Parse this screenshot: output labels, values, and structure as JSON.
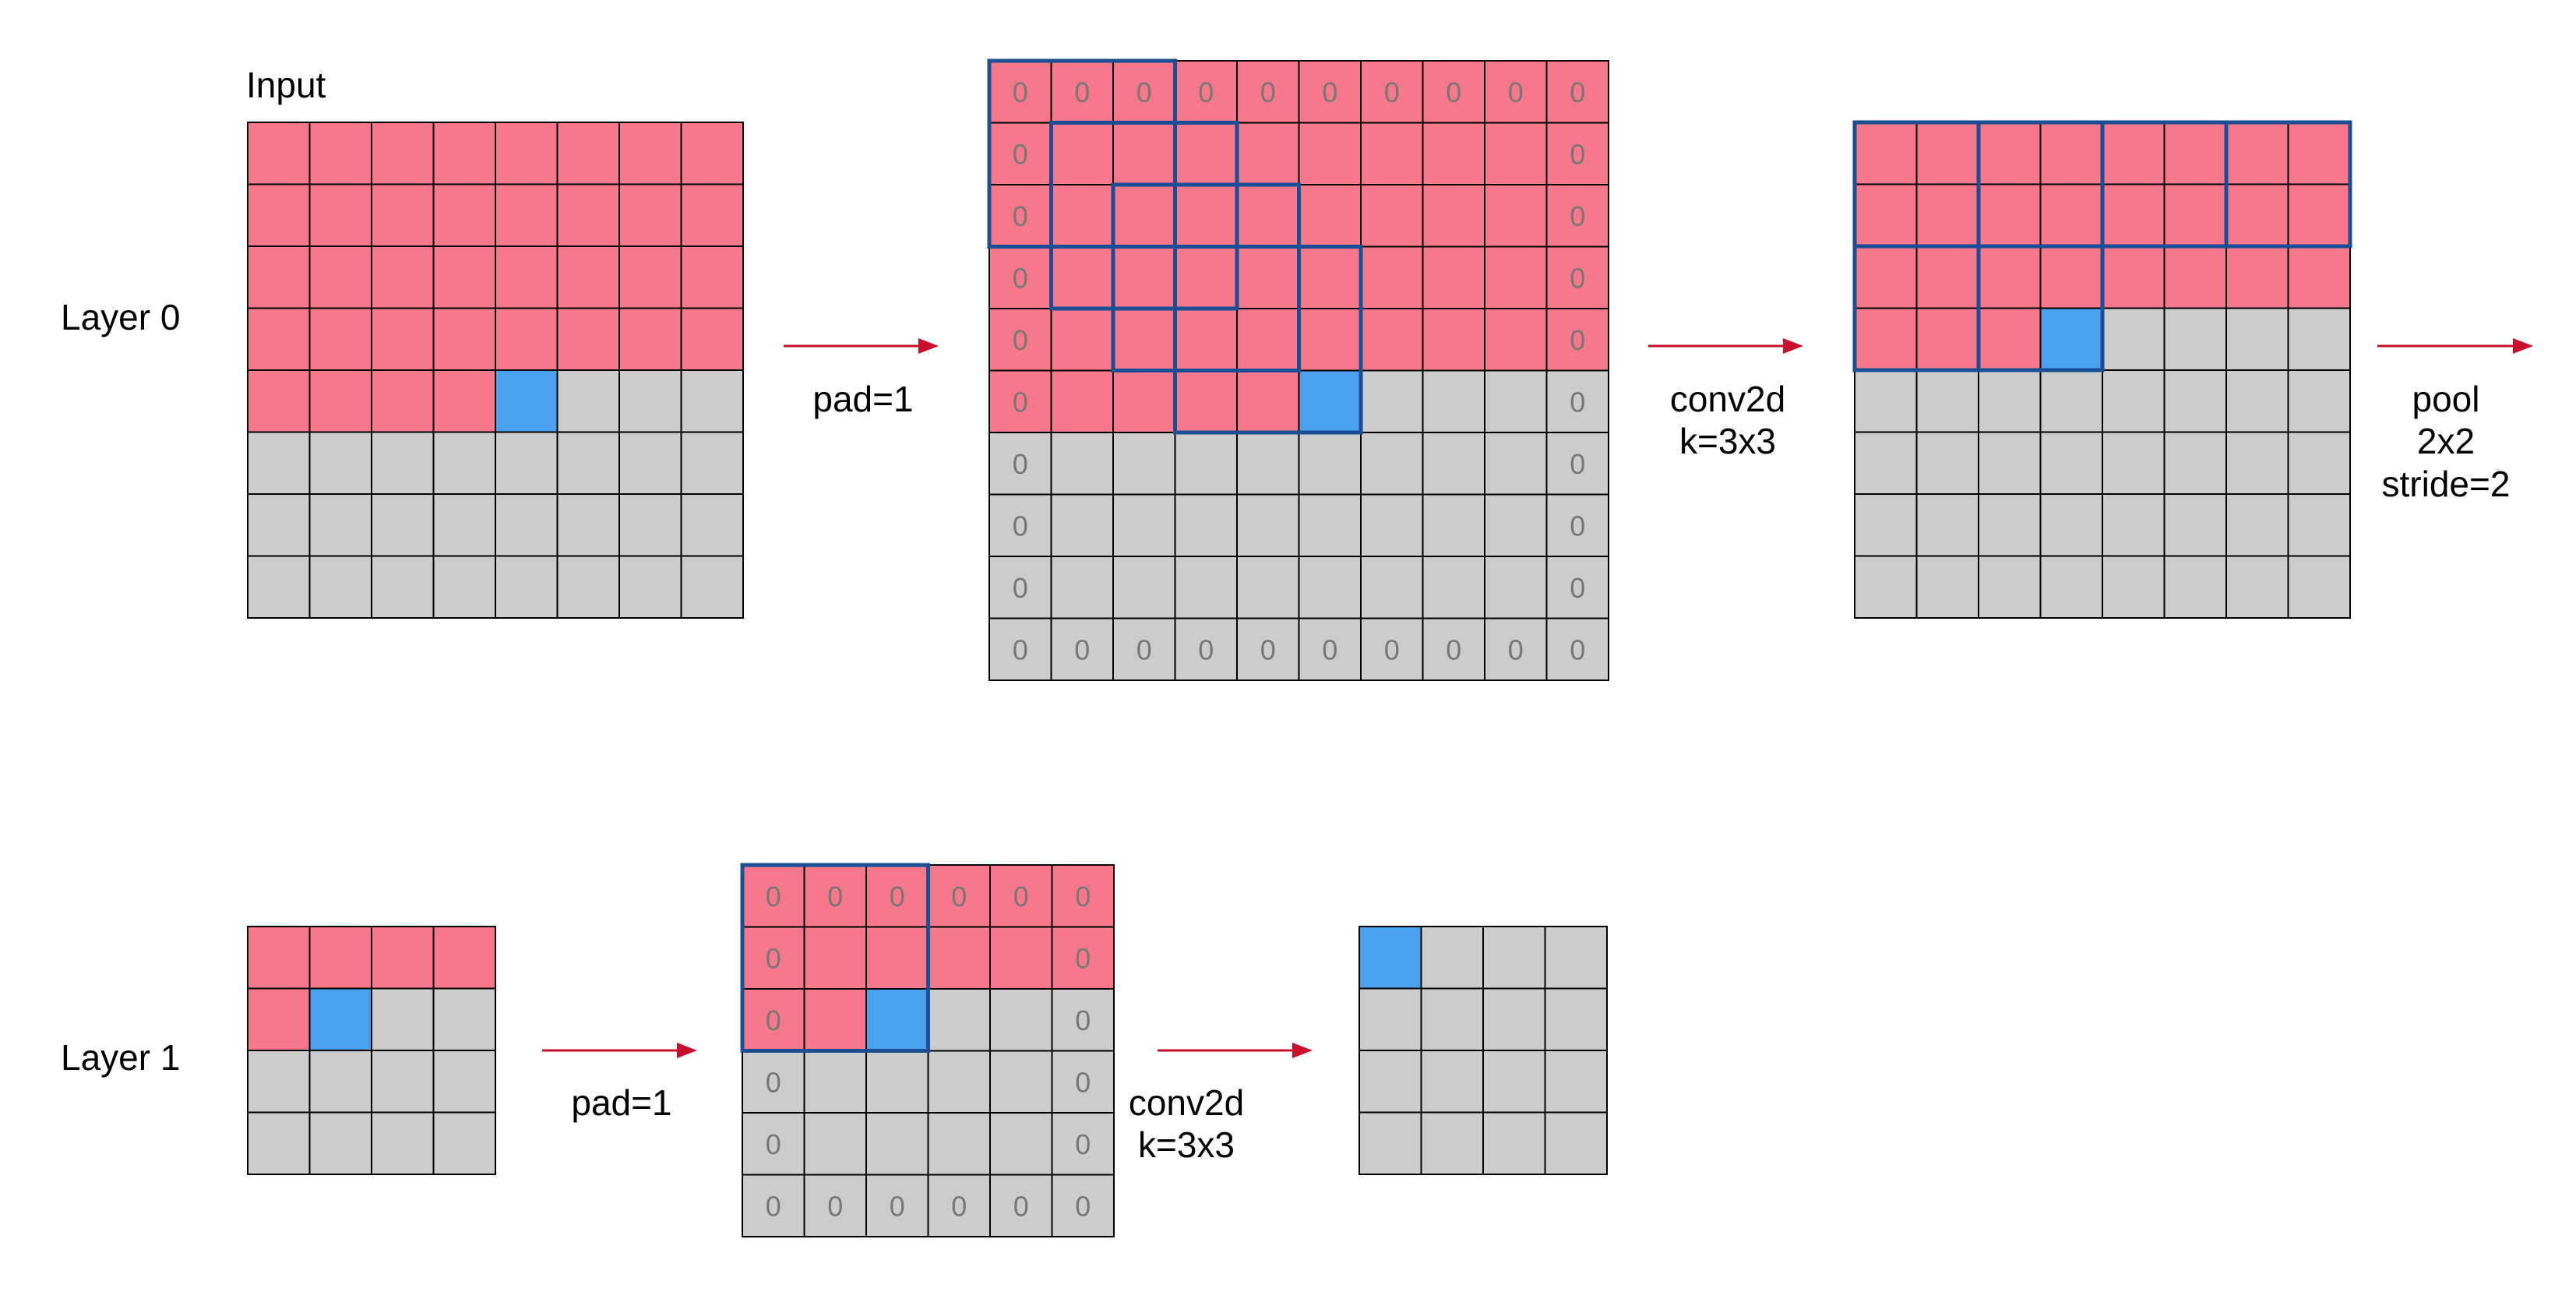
{
  "labels": {
    "input": "Input",
    "layer0": "Layer 0",
    "layer1": "Layer 1",
    "pad_l0": "pad=1",
    "conv_l0_a": "conv2d",
    "conv_l0_b": "k=3x3",
    "pool_a": "pool",
    "pool_b": "2x2",
    "pool_c": "stride=2",
    "pad_l1": "pad=1",
    "conv_l1_a": "conv2d",
    "conv_l1_b": "k=3x3"
  },
  "pad_value": "0",
  "colors": {
    "visited": "#f7788a",
    "unvisited": "#cccccc",
    "current": "#4aa2ef",
    "window_outline": "#1a4f96",
    "grid_line": "#000000",
    "arrow": "#c8102e",
    "pad_text": "#777777"
  },
  "grids": [
    {
      "id": "l0-input",
      "rows": 8,
      "cols": 8,
      "pad": 0,
      "pink_rows": 4,
      "pink_extra": 4,
      "current": [
        4,
        4
      ],
      "windows": []
    },
    {
      "id": "l0-padded",
      "rows": 10,
      "cols": 10,
      "pad": 1,
      "pink_rows": 5,
      "pink_extra": 5,
      "current": [
        5,
        5
      ],
      "windows": [
        [
          0,
          0,
          3,
          3
        ],
        [
          1,
          1,
          3,
          3
        ],
        [
          2,
          2,
          3,
          3
        ],
        [
          3,
          3,
          3,
          3
        ]
      ]
    },
    {
      "id": "l0-conv",
      "rows": 8,
      "cols": 8,
      "pad": 0,
      "pink_rows": 3,
      "pink_extra": 3,
      "current": [
        3,
        3
      ],
      "windows": [
        [
          0,
          0,
          2,
          2
        ],
        [
          0,
          2,
          2,
          2
        ],
        [
          0,
          4,
          2,
          2
        ],
        [
          0,
          6,
          2,
          2
        ],
        [
          2,
          0,
          2,
          2
        ],
        [
          2,
          2,
          2,
          2
        ]
      ]
    },
    {
      "id": "l1-input",
      "rows": 4,
      "cols": 4,
      "pad": 0,
      "pink_rows": 1,
      "pink_extra": 1,
      "current": [
        1,
        1
      ],
      "windows": []
    },
    {
      "id": "l1-padded",
      "rows": 6,
      "cols": 6,
      "pad": 1,
      "pink_rows": 2,
      "pink_extra": 2,
      "current": [
        2,
        2
      ],
      "windows": [
        [
          0,
          0,
          3,
          3
        ]
      ]
    },
    {
      "id": "l1-conv",
      "rows": 4,
      "cols": 4,
      "pad": 0,
      "pink_rows": 0,
      "pink_extra": 0,
      "current": [
        0,
        0
      ],
      "windows": []
    }
  ]
}
